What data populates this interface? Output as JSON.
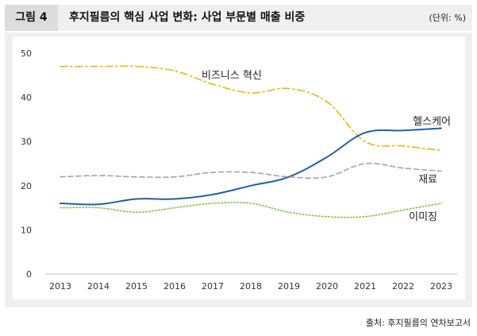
{
  "figure": {
    "label": "그림 4",
    "title": "후지필름의 핵심 사업 변화: 사업 부문별 매출 비중",
    "unit": "(단위: %)",
    "source": "출처: 후지필름의 연차보고서"
  },
  "chart_data": {
    "type": "line",
    "title": "후지필름의 핵심 사업 변화: 사업 부문별 매출 비중",
    "xlabel": "",
    "ylabel": "",
    "ylim": [
      0,
      50
    ],
    "yticks": [
      "0",
      "10",
      "20",
      "30",
      "40",
      "50"
    ],
    "categories": [
      "2013",
      "2014",
      "2015",
      "2016",
      "2017",
      "2018",
      "2019",
      "2020",
      "2021",
      "2022",
      "2023"
    ],
    "series": [
      {
        "name": "비즈니스 혁신",
        "color": "#e8b90c",
        "style": "dashdot",
        "values": [
          47,
          47,
          47,
          46,
          43,
          41,
          42,
          39,
          30,
          29,
          28
        ]
      },
      {
        "name": "헬스케어",
        "color": "#1f5fa8",
        "style": "solid",
        "values": [
          16,
          15.8,
          17,
          17,
          18,
          20,
          22,
          26.5,
          32,
          32.5,
          33
        ]
      },
      {
        "name": "재료",
        "color": "#a3a3a3",
        "style": "dashed",
        "values": [
          22,
          22.3,
          22,
          22,
          23,
          23,
          22,
          22,
          25,
          24,
          23.3
        ]
      },
      {
        "name": "이미징",
        "color": "#86c24a",
        "style": "dotted",
        "values": [
          15,
          15,
          14,
          15,
          16,
          16,
          14,
          13,
          13,
          14.5,
          16
        ]
      }
    ]
  }
}
